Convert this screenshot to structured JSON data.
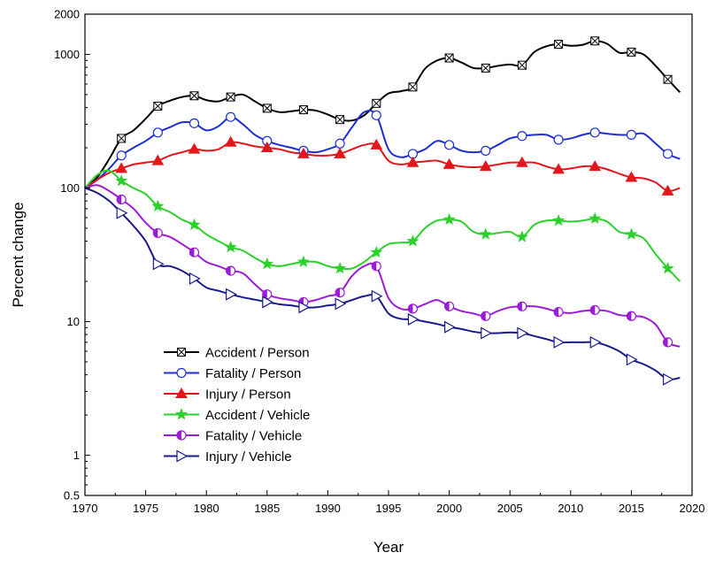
{
  "chart_data": {
    "type": "line",
    "xlabel": "Year",
    "ylabel": "Percent change",
    "xlim": [
      1970,
      2020
    ],
    "ylim": [
      0.5,
      2000
    ],
    "yscale": "log",
    "x_ticks": [
      1970,
      1975,
      1980,
      1985,
      1990,
      1995,
      2000,
      2005,
      2010,
      2015,
      2020
    ],
    "y_ticks": [
      0.5,
      1,
      10,
      100,
      1000,
      2000
    ],
    "y_tick_labels": [
      "0.5",
      "1",
      "10",
      "100",
      "1000",
      "2000"
    ],
    "grid": false,
    "legend_position": "lower-left",
    "series": [
      {
        "name": "Accident / Person",
        "color": "#000000",
        "marker": "boxed-x",
        "x": [
          1970,
          1971,
          1972,
          1973,
          1974,
          1975,
          1976,
          1977,
          1978,
          1979,
          1980,
          1981,
          1982,
          1983,
          1984,
          1985,
          1986,
          1987,
          1988,
          1989,
          1990,
          1991,
          1992,
          1993,
          1994,
          1995,
          1996,
          1997,
          1998,
          1999,
          2000,
          2001,
          2002,
          2003,
          2004,
          2005,
          2006,
          2007,
          2008,
          2009,
          2010,
          2011,
          2012,
          2013,
          2014,
          2015,
          2016,
          2017,
          2018,
          2019
        ],
        "values": [
          100,
          120,
          165,
          235,
          270,
          330,
          410,
          450,
          480,
          490,
          455,
          445,
          480,
          500,
          445,
          395,
          370,
          375,
          385,
          380,
          355,
          325,
          320,
          350,
          430,
          510,
          530,
          570,
          780,
          900,
          940,
          870,
          790,
          790,
          820,
          840,
          830,
          1040,
          1150,
          1190,
          1160,
          1180,
          1260,
          1200,
          1030,
          1040,
          1000,
          820,
          650,
          520
        ],
        "markers": [
          1973,
          1976,
          1979,
          1982,
          1985,
          1988,
          1991,
          1994,
          1997,
          2000,
          2003,
          2006,
          2009,
          2012,
          2015,
          2018
        ]
      },
      {
        "name": "Fatality / Person",
        "color": "#1f2fd6",
        "marker": "open-circle",
        "x": [
          1970,
          1971,
          1972,
          1973,
          1974,
          1975,
          1976,
          1977,
          1978,
          1979,
          1980,
          1981,
          1982,
          1983,
          1984,
          1985,
          1986,
          1987,
          1988,
          1989,
          1990,
          1991,
          1992,
          1993,
          1994,
          1995,
          1996,
          1997,
          1998,
          1999,
          2000,
          2001,
          2002,
          2003,
          2004,
          2005,
          2006,
          2007,
          2008,
          2009,
          2010,
          2011,
          2012,
          2013,
          2014,
          2015,
          2016,
          2017,
          2018,
          2019
        ],
        "values": [
          100,
          115,
          140,
          175,
          200,
          225,
          260,
          285,
          310,
          305,
          270,
          290,
          340,
          300,
          250,
          225,
          210,
          200,
          190,
          185,
          195,
          215,
          285,
          370,
          350,
          195,
          170,
          180,
          195,
          225,
          210,
          190,
          185,
          190,
          210,
          235,
          245,
          250,
          250,
          230,
          235,
          250,
          260,
          255,
          250,
          250,
          255,
          215,
          180,
          165
        ],
        "markers": [
          1973,
          1976,
          1979,
          1982,
          1985,
          1988,
          1991,
          1994,
          1997,
          2000,
          2003,
          2006,
          2009,
          2012,
          2015,
          2018
        ]
      },
      {
        "name": "Injury / Person",
        "color": "#e3161b",
        "marker": "filled-triangle",
        "x": [
          1970,
          1971,
          1972,
          1973,
          1974,
          1975,
          1976,
          1977,
          1978,
          1979,
          1980,
          1981,
          1982,
          1983,
          1984,
          1985,
          1986,
          1987,
          1988,
          1989,
          1990,
          1991,
          1992,
          1993,
          1994,
          1995,
          1996,
          1997,
          1998,
          1999,
          2000,
          2001,
          2002,
          2003,
          2004,
          2005,
          2006,
          2007,
          2008,
          2009,
          2010,
          2011,
          2012,
          2013,
          2014,
          2015,
          2016,
          2017,
          2018,
          2019
        ],
        "values": [
          100,
          115,
          130,
          140,
          150,
          155,
          160,
          175,
          185,
          195,
          190,
          195,
          220,
          215,
          205,
          200,
          195,
          185,
          180,
          175,
          175,
          180,
          195,
          210,
          210,
          160,
          150,
          155,
          158,
          160,
          150,
          145,
          143,
          145,
          150,
          155,
          155,
          155,
          145,
          138,
          140,
          145,
          145,
          138,
          128,
          120,
          118,
          110,
          95,
          100
        ],
        "markers": [
          1973,
          1976,
          1979,
          1982,
          1985,
          1988,
          1991,
          1994,
          1997,
          2000,
          2003,
          2006,
          2009,
          2012,
          2015,
          2018
        ]
      },
      {
        "name": "Accident / Vehicle",
        "color": "#2bd12b",
        "marker": "filled-star",
        "x": [
          1970,
          1971,
          1972,
          1973,
          1974,
          1975,
          1976,
          1977,
          1978,
          1979,
          1980,
          1981,
          1982,
          1983,
          1984,
          1985,
          1986,
          1987,
          1988,
          1989,
          1990,
          1991,
          1992,
          1993,
          1994,
          1995,
          1996,
          1997,
          1998,
          1999,
          2000,
          2001,
          2002,
          2003,
          2004,
          2005,
          2006,
          2007,
          2008,
          2009,
          2010,
          2011,
          2012,
          2013,
          2014,
          2015,
          2016,
          2017,
          2018,
          2019
        ],
        "values": [
          100,
          125,
          135,
          113,
          100,
          90,
          73,
          66,
          58,
          53,
          45,
          40,
          36,
          34,
          30,
          27,
          26,
          27,
          28,
          28,
          26,
          25,
          25,
          28,
          33,
          38,
          39,
          40,
          50,
          57,
          58,
          56,
          47,
          45,
          46,
          47,
          43,
          53,
          57,
          57,
          56,
          57,
          59,
          56,
          47,
          45,
          42,
          32,
          25,
          20
        ],
        "markers": [
          1973,
          1976,
          1979,
          1982,
          1985,
          1988,
          1991,
          1994,
          1997,
          2000,
          2003,
          2006,
          2009,
          2012,
          2015,
          2018
        ]
      },
      {
        "name": "Fatality / Vehicle",
        "color": "#9b1bd6",
        "marker": "half-filled-circle",
        "x": [
          1970,
          1971,
          1972,
          1973,
          1974,
          1975,
          1976,
          1977,
          1978,
          1979,
          1980,
          1981,
          1982,
          1983,
          1984,
          1985,
          1986,
          1987,
          1988,
          1989,
          1990,
          1991,
          1992,
          1993,
          1994,
          1995,
          1996,
          1997,
          1998,
          1999,
          2000,
          2001,
          2002,
          2003,
          2004,
          2005,
          2006,
          2007,
          2008,
          2009,
          2010,
          2011,
          2012,
          2013,
          2014,
          2015,
          2016,
          2017,
          2018,
          2019
        ],
        "values": [
          100,
          105,
          95,
          82,
          70,
          55,
          46,
          43,
          38,
          33,
          28,
          26,
          24,
          23,
          19,
          16,
          15,
          14.5,
          14,
          14.5,
          15.5,
          16.5,
          22,
          26,
          26,
          15,
          12.5,
          12.5,
          13.5,
          14.5,
          13,
          12,
          11.5,
          11,
          12,
          12.8,
          13,
          13,
          12.5,
          11.8,
          11.6,
          12,
          12.2,
          12,
          11.2,
          11,
          10.8,
          9.5,
          7,
          6.5
        ],
        "markers": [
          1973,
          1976,
          1979,
          1982,
          1985,
          1988,
          1991,
          1994,
          1997,
          2000,
          2003,
          2006,
          2009,
          2012,
          2015,
          2018
        ]
      },
      {
        "name": "Injury / Vehicle",
        "color": "#1a1a8c",
        "marker": "open-triangle-right",
        "x": [
          1970,
          1971,
          1972,
          1973,
          1974,
          1975,
          1976,
          1977,
          1978,
          1979,
          1980,
          1981,
          1982,
          1983,
          1984,
          1985,
          1986,
          1987,
          1988,
          1989,
          1990,
          1991,
          1992,
          1993,
          1994,
          1995,
          1996,
          1997,
          1998,
          1999,
          2000,
          2001,
          2002,
          2003,
          2004,
          2005,
          2006,
          2007,
          2008,
          2009,
          2010,
          2011,
          2012,
          2013,
          2014,
          2015,
          2016,
          2017,
          2018,
          2019
        ],
        "values": [
          100,
          92,
          80,
          65,
          52,
          40,
          27,
          26,
          24,
          21,
          18,
          17,
          16,
          15.2,
          14.6,
          14,
          13.5,
          13.2,
          12.8,
          12.8,
          13.2,
          13.6,
          14.5,
          15.5,
          15.5,
          11.5,
          10.5,
          10.4,
          10,
          9.6,
          9.1,
          8.8,
          8.4,
          8.2,
          8.2,
          8.3,
          8.2,
          7.8,
          7.4,
          7.0,
          7.0,
          7.0,
          7.0,
          6.6,
          6.0,
          5.2,
          4.8,
          4.3,
          3.7,
          3.8
        ],
        "markers": [
          1973,
          1976,
          1979,
          1982,
          1985,
          1988,
          1991,
          1994,
          1997,
          2000,
          2003,
          2006,
          2009,
          2012,
          2015,
          2018
        ]
      }
    ]
  }
}
